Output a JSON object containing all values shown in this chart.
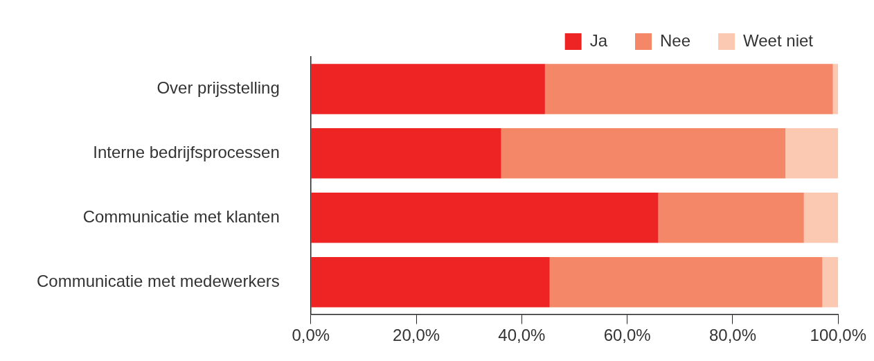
{
  "chart_data": {
    "type": "bar",
    "orientation": "horizontal",
    "stacked": true,
    "categories": [
      "Over prijsstelling",
      "Interne bedrijfsprocessen",
      "Communicatie met klanten",
      "Communicatie met medewerkers"
    ],
    "series": [
      {
        "name": "Ja",
        "color": "#ee2424",
        "values": [
          44.4,
          36.1,
          65.9,
          45.3
        ]
      },
      {
        "name": "Nee",
        "color": "#f48767",
        "values": [
          54.6,
          53.9,
          27.6,
          51.7
        ]
      },
      {
        "name": "Weet niet",
        "color": "#fbc8b1",
        "values": [
          1,
          10,
          6.5,
          3
        ]
      }
    ],
    "xlim": [
      0,
      100
    ],
    "xticks": [
      {
        "value": 0,
        "label": "0,0%"
      },
      {
        "value": 20,
        "label": "20,0%"
      },
      {
        "value": 40,
        "label": "40,0%"
      },
      {
        "value": 60,
        "label": "60,0%"
      },
      {
        "value": 80,
        "label": "80,0%"
      },
      {
        "value": 100,
        "label": "100,0%"
      }
    ],
    "grid": false,
    "legend": "top right"
  }
}
